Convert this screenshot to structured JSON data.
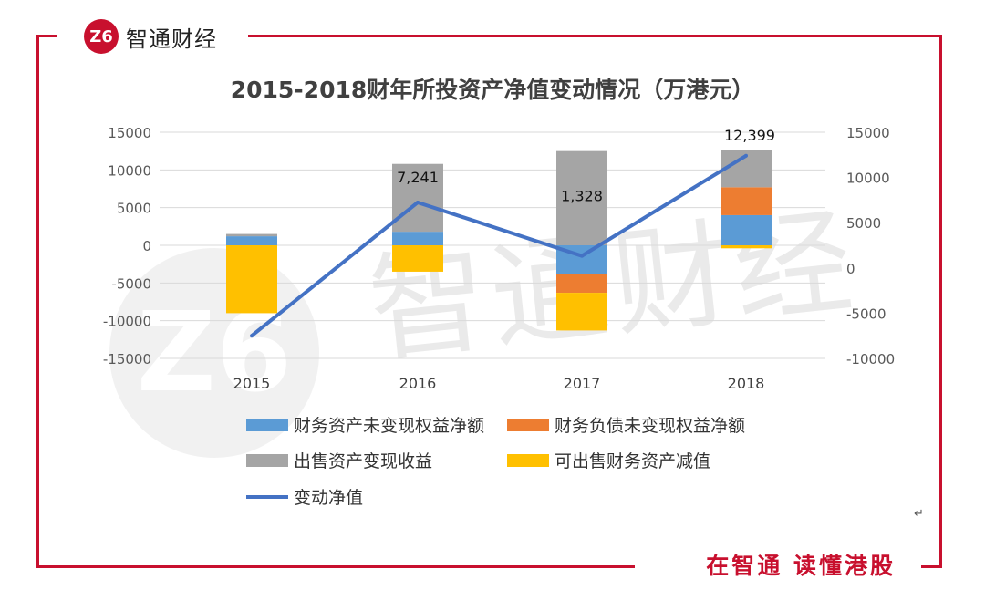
{
  "brand": {
    "logo_glyph": "Z6",
    "name": "智通财经",
    "slogan": "在智通 读懂港股",
    "watermark_text": "智通财经",
    "red": "#c8102e"
  },
  "chart_data": {
    "type": "bar",
    "stacked": true,
    "title": "2015-2018财年所投资产净值变动情况（万港元）",
    "categories": [
      "2015",
      "2016",
      "2017",
      "2018"
    ],
    "left_axis": {
      "ylim": [
        -15000,
        15000
      ],
      "ticks": [
        "15000",
        "10000",
        "5000",
        "0",
        "-5000",
        "-10000",
        "-15000"
      ]
    },
    "right_axis": {
      "ylim": [
        -10000,
        15000
      ],
      "ticks": [
        "15000",
        "10000",
        "5000",
        "0",
        "-5000",
        "-10000"
      ]
    },
    "series": [
      {
        "name": "财务资产未变现权益净额",
        "type": "bar",
        "color": "#5b9bd5",
        "values": [
          1200,
          1800,
          -3800,
          4000
        ]
      },
      {
        "name": "财务负债未变现权益净额",
        "type": "bar",
        "color": "#ed7d31",
        "values": [
          0,
          0,
          -2500,
          3700
        ]
      },
      {
        "name": "出售资产变现收益",
        "type": "bar",
        "color": "#a5a5a5",
        "values": [
          300,
          9000,
          12500,
          4900
        ]
      },
      {
        "name": "可出售财务资产减值",
        "type": "bar",
        "color": "#ffc000",
        "values": [
          -9000,
          -3500,
          -5000,
          -400
        ]
      },
      {
        "name": "变动净值",
        "type": "line",
        "color": "#4472c4",
        "axis": "right",
        "values": [
          -7500,
          7241,
          1328,
          12399
        ]
      }
    ],
    "data_labels": [
      {
        "category": "2016",
        "text": "7,241"
      },
      {
        "category": "2017",
        "text": "1,328"
      },
      {
        "category": "2018",
        "text": "12,399"
      }
    ],
    "legend_position": "bottom"
  }
}
